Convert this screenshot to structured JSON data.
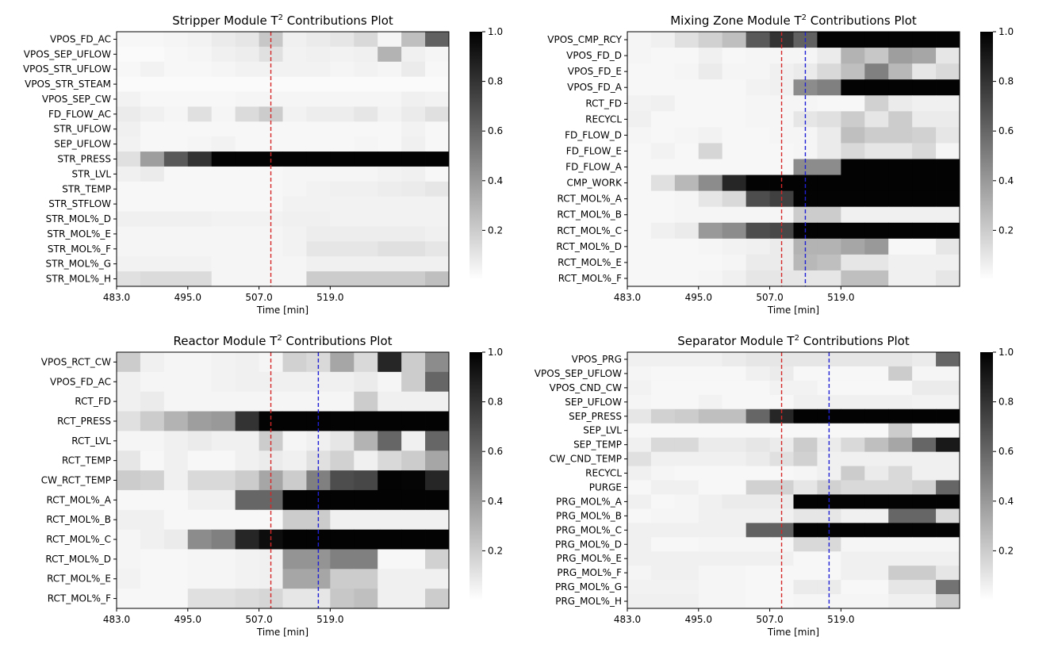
{
  "chart_data": [
    {
      "type": "heatmap",
      "title_main": "Stripper Module T",
      "title_sup": "2",
      "title_rest": " Contributions Plot",
      "xlabel": "Time [min]",
      "xticks": [
        "483.0",
        "495.0",
        "507.0",
        "519.0"
      ],
      "red_line_col": 6.5,
      "blue_line_col": null,
      "colorbar": {
        "ticks": [
          "0.2",
          "0.4",
          "0.6",
          "0.8",
          "1.0"
        ],
        "range": [
          0,
          1
        ]
      },
      "rows": [
        "VPOS_FD_AC",
        "VPOS_SEP_UFLOW",
        "VPOS_STR_UFLOW",
        "VPOS_STR_STEAM",
        "VPOS_SEP_CW",
        "FD_FLOW_AC",
        "STR_UFLOW",
        "SEP_UFLOW",
        "STR_PRESS",
        "STR_LVL",
        "STR_TEMP",
        "STR_STFLOW",
        "STR_MOL%_D",
        "STR_MOL%_E",
        "STR_MOL%_F",
        "STR_MOL%_G",
        "STR_MOL%_H"
      ],
      "values": [
        [
          0.03,
          0.03,
          0.04,
          0.05,
          0.08,
          0.1,
          0.22,
          0.06,
          0.08,
          0.1,
          0.15,
          0.04,
          0.25,
          0.62
        ],
        [
          0.02,
          0.02,
          0.03,
          0.04,
          0.06,
          0.07,
          0.12,
          0.05,
          0.06,
          0.05,
          0.06,
          0.3,
          0.06,
          0.04
        ],
        [
          0.03,
          0.05,
          0.03,
          0.03,
          0.04,
          0.05,
          0.05,
          0.05,
          0.05,
          0.04,
          0.05,
          0.04,
          0.08,
          0.03
        ],
        [
          0.02,
          0.02,
          0.02,
          0.02,
          0.02,
          0.02,
          0.02,
          0.02,
          0.02,
          0.02,
          0.02,
          0.02,
          0.02,
          0.02
        ],
        [
          0.05,
          0.03,
          0.03,
          0.03,
          0.03,
          0.04,
          0.04,
          0.04,
          0.04,
          0.04,
          0.04,
          0.04,
          0.06,
          0.05
        ],
        [
          0.08,
          0.06,
          0.04,
          0.12,
          0.04,
          0.14,
          0.2,
          0.05,
          0.07,
          0.07,
          0.1,
          0.05,
          0.08,
          0.12
        ],
        [
          0.06,
          0.03,
          0.03,
          0.03,
          0.03,
          0.03,
          0.03,
          0.03,
          0.03,
          0.03,
          0.03,
          0.03,
          0.05,
          0.03
        ],
        [
          0.05,
          0.03,
          0.03,
          0.04,
          0.05,
          0.03,
          0.03,
          0.03,
          0.03,
          0.03,
          0.04,
          0.03,
          0.06,
          0.03
        ],
        [
          0.12,
          0.38,
          0.65,
          0.8,
          0.99,
          0.99,
          0.99,
          0.99,
          0.99,
          0.99,
          0.99,
          0.99,
          0.99,
          0.99
        ],
        [
          0.06,
          0.08,
          0.03,
          0.03,
          0.03,
          0.03,
          0.03,
          0.04,
          0.04,
          0.04,
          0.04,
          0.05,
          0.06,
          0.03
        ],
        [
          0.03,
          0.03,
          0.03,
          0.03,
          0.03,
          0.03,
          0.03,
          0.04,
          0.05,
          0.06,
          0.06,
          0.07,
          0.08,
          0.1
        ],
        [
          0.03,
          0.03,
          0.03,
          0.03,
          0.03,
          0.03,
          0.03,
          0.05,
          0.05,
          0.05,
          0.05,
          0.05,
          0.05,
          0.05
        ],
        [
          0.06,
          0.06,
          0.06,
          0.06,
          0.05,
          0.05,
          0.05,
          0.06,
          0.06,
          0.05,
          0.05,
          0.05,
          0.05,
          0.05
        ],
        [
          0.04,
          0.04,
          0.04,
          0.04,
          0.04,
          0.04,
          0.04,
          0.05,
          0.07,
          0.07,
          0.07,
          0.07,
          0.07,
          0.06
        ],
        [
          0.04,
          0.04,
          0.04,
          0.04,
          0.04,
          0.04,
          0.04,
          0.05,
          0.1,
          0.1,
          0.1,
          0.12,
          0.12,
          0.1
        ],
        [
          0.05,
          0.05,
          0.05,
          0.05,
          0.04,
          0.04,
          0.04,
          0.04,
          0.06,
          0.06,
          0.06,
          0.06,
          0.06,
          0.06
        ],
        [
          0.12,
          0.14,
          0.14,
          0.14,
          0.04,
          0.04,
          0.04,
          0.04,
          0.2,
          0.2,
          0.2,
          0.2,
          0.2,
          0.25
        ]
      ]
    },
    {
      "type": "heatmap",
      "title_main": "Mixing Zone Module T",
      "title_sup": "2",
      "title_rest": " Contributions Plot",
      "xlabel": "Time [min]",
      "xticks": [
        "483.0",
        "495.0",
        "507.0",
        "519.0"
      ],
      "red_line_col": 6.5,
      "blue_line_col": 7.5,
      "colorbar": {
        "ticks": [
          "0.2",
          "0.4",
          "0.6",
          "0.8",
          "1.0"
        ],
        "range": [
          0,
          1
        ]
      },
      "rows": [
        "VPOS_CMP_RCY",
        "VPOS_FD_D",
        "VPOS_FD_E",
        "VPOS_FD_A",
        "RCT_FD",
        "RECYCL",
        "FD_FLOW_D",
        "FD_FLOW_E",
        "FD_FLOW_A",
        "CMP_WORK",
        "RCT_MOL%_A",
        "RCT_MOL%_B",
        "RCT_MOL%_C",
        "RCT_MOL%_D",
        "RCT_MOL%_E",
        "RCT_MOL%_F"
      ],
      "values": [
        [
          0.04,
          0.06,
          0.12,
          0.18,
          0.25,
          0.65,
          0.8,
          0.62,
          0.99,
          0.99,
          0.99,
          0.99,
          0.99,
          0.99
        ],
        [
          0.04,
          0.03,
          0.03,
          0.06,
          0.03,
          0.04,
          0.04,
          0.04,
          0.08,
          0.3,
          0.22,
          0.38,
          0.35,
          0.1
        ],
        [
          0.03,
          0.03,
          0.04,
          0.08,
          0.04,
          0.04,
          0.06,
          0.08,
          0.15,
          0.25,
          0.5,
          0.28,
          0.1,
          0.15
        ],
        [
          0.03,
          0.03,
          0.03,
          0.03,
          0.03,
          0.05,
          0.06,
          0.45,
          0.5,
          0.99,
          0.99,
          0.99,
          0.99,
          0.99
        ],
        [
          0.05,
          0.06,
          0.03,
          0.03,
          0.03,
          0.04,
          0.04,
          0.04,
          0.03,
          0.03,
          0.18,
          0.08,
          0.06,
          0.06
        ],
        [
          0.06,
          0.03,
          0.03,
          0.03,
          0.03,
          0.04,
          0.04,
          0.1,
          0.12,
          0.2,
          0.1,
          0.2,
          0.08,
          0.08
        ],
        [
          0.04,
          0.03,
          0.04,
          0.05,
          0.03,
          0.03,
          0.04,
          0.04,
          0.08,
          0.25,
          0.2,
          0.2,
          0.18,
          0.1
        ],
        [
          0.03,
          0.05,
          0.03,
          0.16,
          0.03,
          0.03,
          0.03,
          0.04,
          0.08,
          0.15,
          0.1,
          0.1,
          0.15,
          0.04
        ],
        [
          0.03,
          0.03,
          0.03,
          0.03,
          0.03,
          0.03,
          0.03,
          0.45,
          0.45,
          0.99,
          0.99,
          0.99,
          0.99,
          0.99
        ],
        [
          0.03,
          0.12,
          0.28,
          0.45,
          0.85,
          0.99,
          0.99,
          0.99,
          0.99,
          0.99,
          0.99,
          0.99,
          0.99,
          0.99
        ],
        [
          0.03,
          0.03,
          0.04,
          0.1,
          0.15,
          0.7,
          0.75,
          0.99,
          0.99,
          0.99,
          0.99,
          0.99,
          0.99,
          0.99
        ],
        [
          0.03,
          0.03,
          0.04,
          0.04,
          0.04,
          0.04,
          0.04,
          0.2,
          0.2,
          0.06,
          0.06,
          0.06,
          0.06,
          0.06
        ],
        [
          0.03,
          0.06,
          0.08,
          0.4,
          0.45,
          0.7,
          0.72,
          0.99,
          0.99,
          0.99,
          0.99,
          0.99,
          0.99,
          0.99
        ],
        [
          0.03,
          0.03,
          0.03,
          0.04,
          0.05,
          0.06,
          0.08,
          0.3,
          0.3,
          0.35,
          0.4,
          0.03,
          0.03,
          0.1
        ],
        [
          0.03,
          0.03,
          0.03,
          0.03,
          0.04,
          0.08,
          0.08,
          0.28,
          0.25,
          0.1,
          0.1,
          0.06,
          0.06,
          0.06
        ],
        [
          0.03,
          0.03,
          0.03,
          0.04,
          0.06,
          0.1,
          0.1,
          0.1,
          0.1,
          0.25,
          0.25,
          0.06,
          0.06,
          0.1
        ]
      ]
    },
    {
      "type": "heatmap",
      "title_main": "Reactor Module T",
      "title_sup": "2",
      "title_rest": " Contributions Plot",
      "xlabel": "Time [min]",
      "xticks": [
        "483.0",
        "495.0",
        "507.0",
        "519.0"
      ],
      "red_line_col": 6.5,
      "blue_line_col": 8.5,
      "colorbar": {
        "ticks": [
          "0.2",
          "0.4",
          "0.6",
          "0.8",
          "1.0"
        ],
        "range": [
          0,
          1
        ]
      },
      "rows": [
        "VPOS_RCT_CW",
        "VPOS_FD_AC",
        "RCT_FD",
        "RCT_PRESS",
        "RCT_LVL",
        "RCT_TEMP",
        "CW_RCT_TEMP",
        "RCT_MOL%_A",
        "RCT_MOL%_B",
        "RCT_MOL%_C",
        "RCT_MOL%_D",
        "RCT_MOL%_E",
        "RCT_MOL%_F"
      ],
      "values": [
        [
          0.2,
          0.06,
          0.04,
          0.04,
          0.05,
          0.06,
          0.04,
          0.18,
          0.15,
          0.35,
          0.15,
          0.85,
          0.2,
          0.45
        ],
        [
          0.06,
          0.04,
          0.04,
          0.04,
          0.05,
          0.06,
          0.06,
          0.06,
          0.06,
          0.06,
          0.08,
          0.04,
          0.2,
          0.6
        ],
        [
          0.06,
          0.08,
          0.04,
          0.04,
          0.04,
          0.04,
          0.04,
          0.04,
          0.04,
          0.04,
          0.2,
          0.06,
          0.06,
          0.06
        ],
        [
          0.12,
          0.2,
          0.3,
          0.38,
          0.4,
          0.8,
          0.99,
          0.99,
          0.99,
          0.99,
          0.99,
          0.99,
          0.99,
          0.99
        ],
        [
          0.04,
          0.04,
          0.06,
          0.08,
          0.06,
          0.06,
          0.2,
          0.04,
          0.06,
          0.1,
          0.3,
          0.6,
          0.06,
          0.6
        ],
        [
          0.1,
          0.03,
          0.06,
          0.03,
          0.03,
          0.06,
          0.08,
          0.06,
          0.12,
          0.18,
          0.06,
          0.15,
          0.2,
          0.35
        ],
        [
          0.2,
          0.18,
          0.06,
          0.15,
          0.15,
          0.2,
          0.35,
          0.2,
          0.5,
          0.7,
          0.72,
          0.99,
          0.98,
          0.85
        ],
        [
          0.03,
          0.03,
          0.03,
          0.06,
          0.06,
          0.6,
          0.6,
          0.99,
          0.99,
          0.99,
          0.99,
          0.99,
          0.99,
          0.99
        ],
        [
          0.06,
          0.06,
          0.03,
          0.03,
          0.03,
          0.03,
          0.03,
          0.2,
          0.2,
          0.06,
          0.06,
          0.06,
          0.06,
          0.06
        ],
        [
          0.04,
          0.06,
          0.08,
          0.45,
          0.5,
          0.85,
          0.95,
          0.99,
          0.99,
          0.99,
          0.99,
          0.99,
          0.99,
          0.99
        ],
        [
          0.04,
          0.03,
          0.03,
          0.04,
          0.04,
          0.05,
          0.06,
          0.42,
          0.42,
          0.5,
          0.5,
          0.03,
          0.03,
          0.18
        ],
        [
          0.05,
          0.03,
          0.03,
          0.04,
          0.04,
          0.05,
          0.06,
          0.35,
          0.35,
          0.2,
          0.2,
          0.06,
          0.06,
          0.06
        ],
        [
          0.03,
          0.03,
          0.03,
          0.12,
          0.12,
          0.14,
          0.16,
          0.1,
          0.1,
          0.22,
          0.25,
          0.06,
          0.06,
          0.2
        ]
      ]
    },
    {
      "type": "heatmap",
      "title_main": "Separator Module T",
      "title_sup": "2",
      "title_rest": " Contributions Plot",
      "xlabel": "Time [min]",
      "xticks": [
        "483.0",
        "495.0",
        "507.0",
        "519.0"
      ],
      "red_line_col": 6.5,
      "blue_line_col": 8.5,
      "colorbar": {
        "ticks": [
          "0.2",
          "0.4",
          "0.6",
          "0.8",
          "1.0"
        ],
        "range": [
          0,
          1
        ]
      },
      "rows": [
        "VPOS_PRG",
        "VPOS_SEP_UFLOW",
        "VPOS_CND_CW",
        "SEP_UFLOW",
        "SEP_PRESS",
        "SEP_LVL",
        "SEP_TEMP",
        "CW_CND_TEMP",
        "RECYCL",
        "PURGE",
        "PRG_MOL%_A",
        "PRG_MOL%_B",
        "PRG_MOL%_C",
        "PRG_MOL%_D",
        "PRG_MOL%_E",
        "PRG_MOL%_F",
        "PRG_MOL%_G",
        "PRG_MOL%_H"
      ],
      "values": [
        [
          0.06,
          0.06,
          0.06,
          0.06,
          0.08,
          0.1,
          0.1,
          0.1,
          0.1,
          0.1,
          0.1,
          0.1,
          0.08,
          0.6
        ],
        [
          0.04,
          0.03,
          0.03,
          0.03,
          0.03,
          0.06,
          0.08,
          0.03,
          0.03,
          0.03,
          0.03,
          0.2,
          0.04,
          0.04
        ],
        [
          0.05,
          0.03,
          0.03,
          0.03,
          0.03,
          0.03,
          0.05,
          0.05,
          0.03,
          0.03,
          0.03,
          0.03,
          0.08,
          0.08
        ],
        [
          0.04,
          0.03,
          0.03,
          0.05,
          0.03,
          0.03,
          0.03,
          0.06,
          0.06,
          0.06,
          0.06,
          0.06,
          0.05,
          0.05
        ],
        [
          0.1,
          0.18,
          0.2,
          0.25,
          0.25,
          0.6,
          0.85,
          0.99,
          0.99,
          0.99,
          0.99,
          0.99,
          0.99,
          0.99
        ],
        [
          0.03,
          0.03,
          0.03,
          0.03,
          0.03,
          0.03,
          0.03,
          0.03,
          0.03,
          0.03,
          0.03,
          0.2,
          0.03,
          0.03
        ],
        [
          0.06,
          0.15,
          0.15,
          0.08,
          0.08,
          0.1,
          0.08,
          0.2,
          0.08,
          0.15,
          0.25,
          0.35,
          0.6,
          0.9
        ],
        [
          0.12,
          0.06,
          0.06,
          0.06,
          0.06,
          0.08,
          0.12,
          0.18,
          0.06,
          0.06,
          0.06,
          0.06,
          0.06,
          0.06
        ],
        [
          0.06,
          0.04,
          0.03,
          0.03,
          0.03,
          0.03,
          0.03,
          0.04,
          0.06,
          0.2,
          0.08,
          0.15,
          0.06,
          0.06
        ],
        [
          0.03,
          0.06,
          0.06,
          0.03,
          0.03,
          0.18,
          0.18,
          0.1,
          0.18,
          0.15,
          0.15,
          0.15,
          0.18,
          0.6
        ],
        [
          0.06,
          0.03,
          0.04,
          0.06,
          0.08,
          0.08,
          0.08,
          0.99,
          0.99,
          0.99,
          0.99,
          0.99,
          0.99,
          0.99
        ],
        [
          0.03,
          0.04,
          0.04,
          0.06,
          0.06,
          0.06,
          0.06,
          0.1,
          0.1,
          0.06,
          0.06,
          0.6,
          0.6,
          0.15
        ],
        [
          0.06,
          0.06,
          0.06,
          0.06,
          0.06,
          0.62,
          0.62,
          0.99,
          0.99,
          0.99,
          0.99,
          0.99,
          0.99,
          0.99
        ],
        [
          0.06,
          0.03,
          0.03,
          0.04,
          0.04,
          0.04,
          0.04,
          0.15,
          0.15,
          0.04,
          0.04,
          0.04,
          0.04,
          0.04
        ],
        [
          0.06,
          0.06,
          0.06,
          0.06,
          0.06,
          0.06,
          0.06,
          0.03,
          0.03,
          0.06,
          0.06,
          0.06,
          0.06,
          0.06
        ],
        [
          0.04,
          0.06,
          0.06,
          0.04,
          0.04,
          0.03,
          0.03,
          0.03,
          0.03,
          0.06,
          0.06,
          0.2,
          0.2,
          0.1
        ],
        [
          0.05,
          0.05,
          0.05,
          0.04,
          0.04,
          0.03,
          0.03,
          0.08,
          0.08,
          0.03,
          0.03,
          0.1,
          0.1,
          0.55
        ],
        [
          0.06,
          0.06,
          0.06,
          0.04,
          0.04,
          0.03,
          0.03,
          0.04,
          0.04,
          0.04,
          0.04,
          0.06,
          0.06,
          0.2
        ]
      ]
    }
  ]
}
